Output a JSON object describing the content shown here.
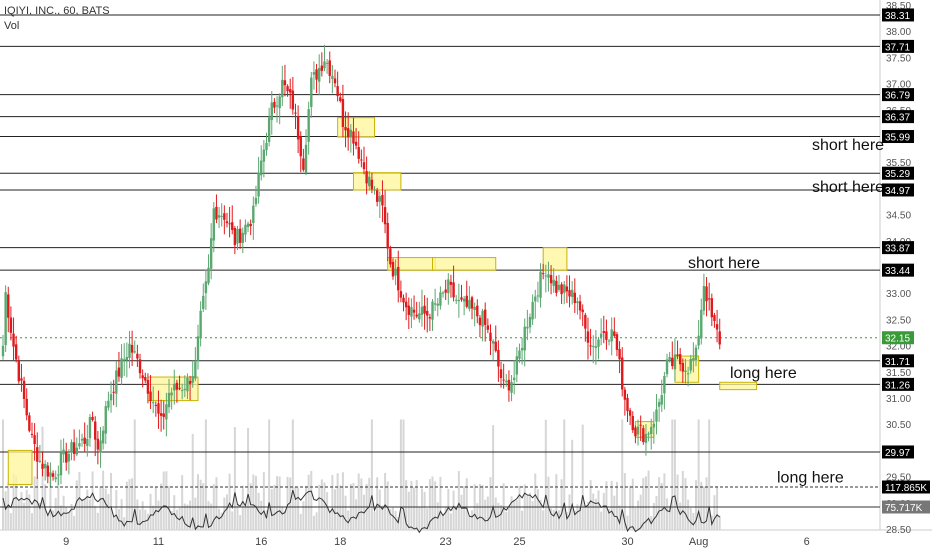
{
  "header": {
    "symbol_line": "IQIYI, INC., 60, BATS",
    "volume_label": "Vol"
  },
  "colors": {
    "up": "#5aa870",
    "down": "#e0191c",
    "level_line": "#222222",
    "current_price": "#3a9a3a",
    "zone_fill": "#fff59a",
    "zone_stroke": "#c8b400",
    "volume_bar": "#d6d6d6",
    "label_bg": "#000000"
  },
  "chart_data": {
    "type": "candlestick",
    "price_axis": {
      "ylim": [
        28.5,
        38.5
      ],
      "ticks": [
        "28.50",
        "29.00",
        "29.50",
        "30.00",
        "30.50",
        "31.00",
        "31.50",
        "32.00",
        "32.50",
        "33.00",
        "33.50",
        "34.00",
        "34.50",
        "35.00",
        "35.50",
        "36.00",
        "36.50",
        "37.00",
        "37.50",
        "38.00",
        "38.50"
      ]
    },
    "x_axis": {
      "ticks": [
        {
          "label": "9",
          "bar": 24
        },
        {
          "label": "11",
          "bar": 59
        },
        {
          "label": "16",
          "bar": 98
        },
        {
          "label": "18",
          "bar": 128
        },
        {
          "label": "23",
          "bar": 168
        },
        {
          "label": "25",
          "bar": 196
        },
        {
          "label": "30",
          "bar": 237
        },
        {
          "label": "Aug",
          "bar": 264
        },
        {
          "label": "6",
          "bar": 305
        }
      ]
    },
    "price_labels": [
      "38.31",
      "37.71",
      "36.79",
      "36.37",
      "35.99",
      "35.29",
      "34.97",
      "33.87",
      "33.44",
      "32.15",
      "31.71",
      "31.26",
      "29.97",
      "117.865K",
      "75.717K"
    ],
    "levels": [
      38.31,
      37.71,
      36.79,
      36.37,
      35.99,
      35.29,
      34.97,
      33.87,
      33.44,
      31.71,
      31.26,
      29.97
    ],
    "current_price": 32.15,
    "volume_levels": [
      "117.865K",
      "75.717K"
    ],
    "annotations": [
      {
        "text": "short here",
        "price": 35.85
      },
      {
        "text": "short here",
        "price": 35.05
      },
      {
        "text": "short here",
        "price": 33.6
      },
      {
        "text": "long here",
        "price": 31.5
      },
      {
        "text": "long here",
        "price": 29.5
      }
    ],
    "zones": [
      {
        "b0": 2,
        "b1": 11,
        "p0": 29.35,
        "p1": 30.0
      },
      {
        "b0": 55,
        "b1": 74,
        "p0": 30.95,
        "p1": 31.4
      },
      {
        "b0": 127,
        "b1": 141,
        "p0": 35.98,
        "p1": 36.35
      },
      {
        "b0": 133,
        "b1": 151,
        "p0": 34.97,
        "p1": 35.3
      },
      {
        "b0": 146,
        "b1": 164,
        "p0": 33.44,
        "p1": 33.68
      },
      {
        "b0": 163,
        "b1": 187,
        "p0": 33.44,
        "p1": 33.68
      },
      {
        "b0": 205,
        "b1": 214,
        "p0": 33.44,
        "p1": 33.87
      },
      {
        "b0": 240,
        "b1": 247,
        "p0": 30.25,
        "p1": 30.55
      },
      {
        "b0": 255,
        "b1": 264,
        "p0": 31.3,
        "p1": 31.8
      },
      {
        "b0": 272,
        "b1": 286,
        "p0": 31.16,
        "p1": 31.3
      }
    ],
    "waypoints": [
      [
        0,
        32.0
      ],
      [
        1,
        33.0
      ],
      [
        4,
        32.0
      ],
      [
        7,
        31.2
      ],
      [
        11,
        30.2
      ],
      [
        14,
        29.8
      ],
      [
        19,
        29.5
      ],
      [
        22,
        29.8
      ],
      [
        26,
        30.0
      ],
      [
        31,
        30.2
      ],
      [
        34,
        30.6
      ],
      [
        36,
        30.0
      ],
      [
        40,
        31.0
      ],
      [
        44,
        31.5
      ],
      [
        48,
        32.0
      ],
      [
        52,
        31.6
      ],
      [
        56,
        31.1
      ],
      [
        60,
        30.5
      ],
      [
        63,
        31.1
      ],
      [
        67,
        31.2
      ],
      [
        70,
        31.3
      ],
      [
        73,
        31.6
      ],
      [
        75,
        32.5
      ],
      [
        78,
        33.4
      ],
      [
        80,
        34.6
      ],
      [
        84,
        34.5
      ],
      [
        88,
        34.0
      ],
      [
        91,
        34.2
      ],
      [
        95,
        34.5
      ],
      [
        98,
        35.5
      ],
      [
        102,
        36.5
      ],
      [
        106,
        37.0
      ],
      [
        110,
        36.6
      ],
      [
        114,
        35.5
      ],
      [
        117,
        37.0
      ],
      [
        122,
        37.5
      ],
      [
        126,
        37.1
      ],
      [
        129,
        36.3
      ],
      [
        133,
        36.0
      ],
      [
        137,
        35.4
      ],
      [
        140,
        35.0
      ],
      [
        144,
        34.6
      ],
      [
        147,
        33.6
      ],
      [
        150,
        33.2
      ],
      [
        153,
        32.8
      ],
      [
        157,
        32.6
      ],
      [
        161,
        32.6
      ],
      [
        165,
        32.8
      ],
      [
        169,
        33.1
      ],
      [
        173,
        32.8
      ],
      [
        177,
        32.7
      ],
      [
        182,
        32.5
      ],
      [
        186,
        32.0
      ],
      [
        190,
        31.2
      ],
      [
        194,
        31.4
      ],
      [
        198,
        32.3
      ],
      [
        202,
        33.0
      ],
      [
        206,
        33.5
      ],
      [
        210,
        33.1
      ],
      [
        214,
        33.0
      ],
      [
        218,
        32.9
      ],
      [
        221,
        32.3
      ],
      [
        224,
        32.0
      ],
      [
        228,
        32.3
      ],
      [
        232,
        32.2
      ],
      [
        236,
        31.0
      ],
      [
        240,
        30.4
      ],
      [
        244,
        30.3
      ],
      [
        248,
        30.7
      ],
      [
        252,
        31.6
      ],
      [
        256,
        31.7
      ],
      [
        260,
        31.6
      ],
      [
        263,
        31.8
      ],
      [
        266,
        33.2
      ],
      [
        269,
        32.5
      ],
      [
        272,
        32.1
      ]
    ]
  }
}
